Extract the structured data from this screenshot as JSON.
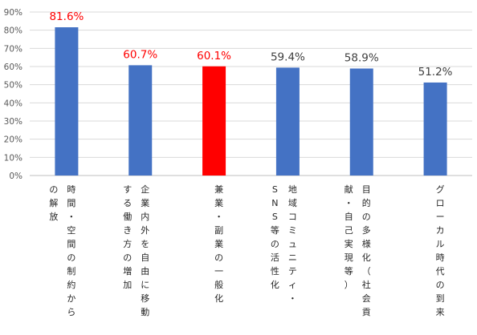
{
  "chart_data": {
    "type": "bar",
    "title": "",
    "xlabel": "",
    "ylabel": "",
    "ylim": [
      0,
      90
    ],
    "yticks": [
      "0%",
      "10%",
      "20%",
      "30%",
      "40%",
      "50%",
      "60%",
      "70%",
      "80%",
      "90%"
    ],
    "grid": true,
    "categories": [
      [
        "時間・空間の制約から",
        "の解放"
      ],
      [
        "企業内外を自由に移動",
        "する働き方の増加"
      ],
      [
        "兼業・副業の一般化"
      ],
      [
        "地域コミュニティ・",
        "SNS等の活性化"
      ],
      [
        "目的の多様化（社会貢",
        "献・自己実現等）"
      ],
      [
        "グローカル時代の到来"
      ]
    ],
    "values": [
      81.6,
      60.7,
      60.1,
      59.4,
      58.9,
      51.2
    ],
    "labels": [
      "81.6%",
      "60.7%",
      "60.1%",
      "59.4%",
      "58.9%",
      "51.2%"
    ],
    "bar_colors": [
      "#4472C4",
      "#4472C4",
      "#FF0000",
      "#4472C4",
      "#4472C4",
      "#4472C4"
    ],
    "label_colors": [
      "#FF0000",
      "#FF0000",
      "#FF0000",
      "#404040",
      "#404040",
      "#404040"
    ]
  }
}
